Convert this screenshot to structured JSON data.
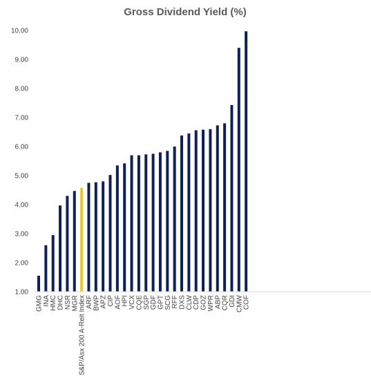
{
  "chart_data": {
    "type": "bar",
    "title": "Gross Dividend Yield (%)",
    "xlabel": "",
    "ylabel": "",
    "ylim": [
      1.0,
      10.0
    ],
    "yticks": [
      "1.00",
      "2.00",
      "3.00",
      "4.00",
      "5.00",
      "6.00",
      "7.00",
      "8.00",
      "9.00",
      "10.00"
    ],
    "grid": false,
    "colors": {
      "default": "#0d1f5c",
      "highlight": "#f3c623"
    },
    "highlight_category": "S&P/Asx 200 A-Reit Index",
    "categories": [
      "GMG",
      "INA",
      "HMC",
      "DHC",
      "NSR",
      "MGR",
      "S&P/Asx 200 A-Reit Index",
      "ARF",
      "BWP",
      "APZ",
      "CIP",
      "AOF",
      "HPI",
      "VCX",
      "CQE",
      "SGP",
      "GDF",
      "GPT",
      "SCG",
      "RFF",
      "DXS",
      "CLW",
      "CDP",
      "GOZ",
      "WPR",
      "ABP",
      "CQR",
      "GDI",
      "CMW",
      "COF"
    ],
    "values": [
      1.55,
      2.6,
      2.95,
      3.97,
      4.3,
      4.47,
      4.58,
      4.75,
      4.77,
      4.8,
      5.02,
      5.35,
      5.42,
      5.7,
      5.7,
      5.73,
      5.75,
      5.8,
      5.85,
      6.0,
      6.38,
      6.45,
      6.56,
      6.58,
      6.6,
      6.73,
      6.8,
      7.43,
      9.4,
      9.97
    ]
  }
}
